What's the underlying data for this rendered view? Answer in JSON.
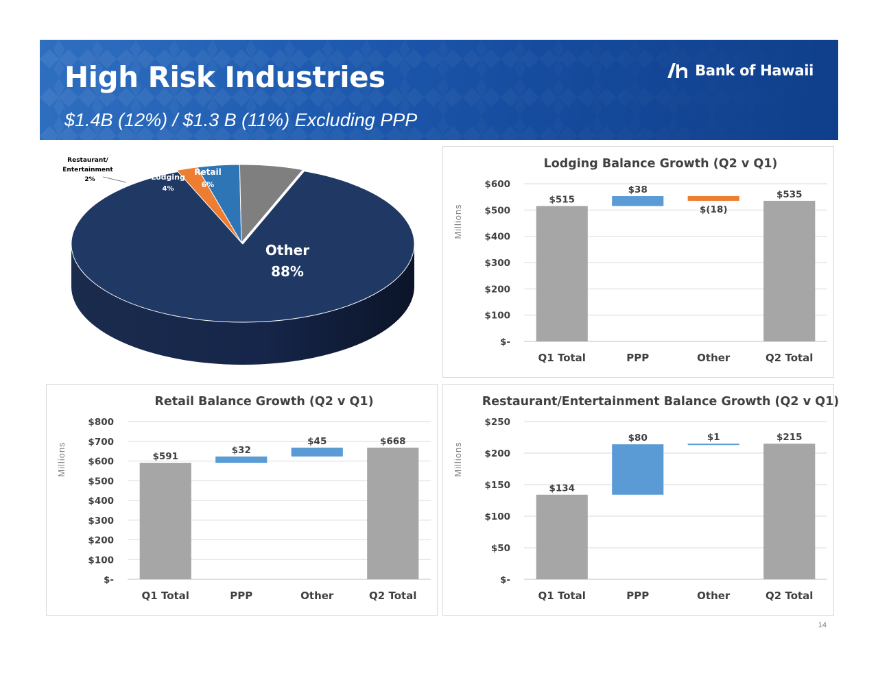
{
  "header": {
    "title": "High Risk Industries",
    "subtitle": "$1.4B (12%) / $1.3 B (11%) Excluding PPP",
    "logo_text": "Bank of Hawaii"
  },
  "page_number": "14",
  "colors": {
    "banner": "#1e5bb0",
    "pie_other": "#1f3864",
    "pie_lodging": "#2e75b6",
    "pie_retail": "#7f7f7f",
    "pie_restaurant": "#ed7d31",
    "bar_total": "#a6a6a6",
    "bar_increase": "#5b9bd5",
    "bar_decrease": "#ed7d31",
    "text_dark": "#404040"
  },
  "chart_data": [
    {
      "id": "pie",
      "type": "pie",
      "title": "",
      "slices": [
        {
          "label": "Other",
          "value": 88,
          "text": "88%"
        },
        {
          "label": "Restaurant/ Entertainment",
          "value": 2,
          "text": "2%"
        },
        {
          "label": "Lodging",
          "value": 4,
          "text": "4%"
        },
        {
          "label": "Retail",
          "value": 6,
          "text": "6%"
        }
      ]
    },
    {
      "id": "lodging",
      "type": "bar",
      "subtype": "waterfall",
      "title": "Lodging Balance Growth (Q2 v Q1)",
      "ylabel": "Millions",
      "categories": [
        "Q1 Total",
        "PPP",
        "Other",
        "Q2 Total"
      ],
      "steps": [
        {
          "kind": "total",
          "value": 515,
          "label": "$515"
        },
        {
          "kind": "delta",
          "value": 38,
          "label": "$38"
        },
        {
          "kind": "delta",
          "value": -18,
          "label": "$(18)"
        },
        {
          "kind": "total",
          "value": 535,
          "label": "$535"
        }
      ],
      "ylim": [
        0,
        600
      ],
      "yticks": [
        0,
        100,
        200,
        300,
        400,
        500,
        600
      ],
      "ytick_labels": [
        "$-",
        "$100",
        "$200",
        "$300",
        "$400",
        "$500",
        "$600"
      ]
    },
    {
      "id": "retail",
      "type": "bar",
      "subtype": "waterfall",
      "title": "Retail Balance Growth (Q2 v Q1)",
      "ylabel": "Millions",
      "categories": [
        "Q1 Total",
        "PPP",
        "Other",
        "Q2 Total"
      ],
      "steps": [
        {
          "kind": "total",
          "value": 591,
          "label": "$591"
        },
        {
          "kind": "delta",
          "value": 32,
          "label": "$32"
        },
        {
          "kind": "delta",
          "value": 45,
          "label": "$45"
        },
        {
          "kind": "total",
          "value": 668,
          "label": "$668"
        }
      ],
      "ylim": [
        0,
        800
      ],
      "yticks": [
        0,
        100,
        200,
        300,
        400,
        500,
        600,
        700,
        800
      ],
      "ytick_labels": [
        "$-",
        "$100",
        "$200",
        "$300",
        "$400",
        "$500",
        "$600",
        "$700",
        "$800"
      ]
    },
    {
      "id": "restaurant",
      "type": "bar",
      "subtype": "waterfall",
      "title": "Restaurant/Entertainment Balance Growth (Q2 v Q1)",
      "ylabel": "Millions",
      "categories": [
        "Q1 Total",
        "PPP",
        "Other",
        "Q2 Total"
      ],
      "steps": [
        {
          "kind": "total",
          "value": 134,
          "label": "$134"
        },
        {
          "kind": "delta",
          "value": 80,
          "label": "$80"
        },
        {
          "kind": "delta",
          "value": 1,
          "label": "$1"
        },
        {
          "kind": "total",
          "value": 215,
          "label": "$215"
        }
      ],
      "ylim": [
        0,
        250
      ],
      "yticks": [
        0,
        50,
        100,
        150,
        200,
        250
      ],
      "ytick_labels": [
        "$-",
        "$50",
        "$100",
        "$150",
        "$200",
        "$250"
      ]
    }
  ]
}
